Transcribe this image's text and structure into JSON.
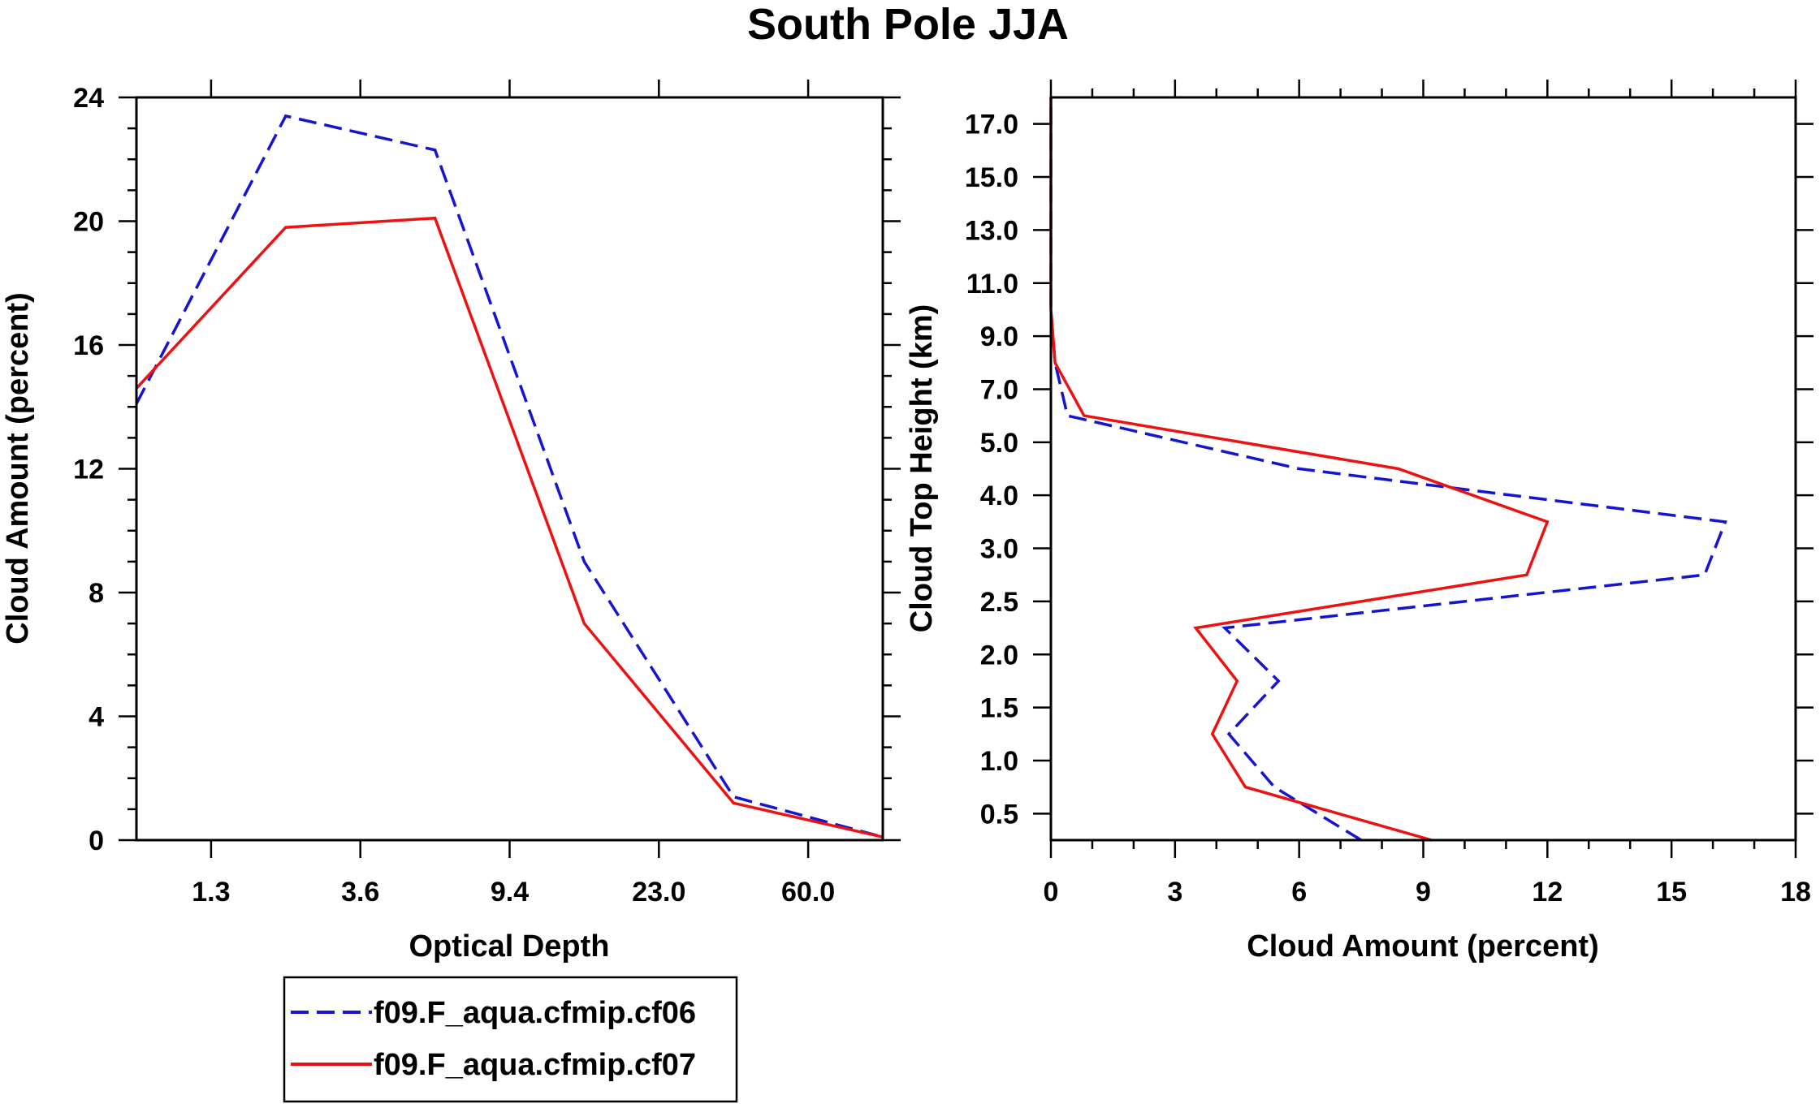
{
  "figure_title": "South Pole JJA",
  "legend": {
    "entries": [
      {
        "label": "f09.F_aqua.cfmip.cf06",
        "color": "#1414d2",
        "dash": "dashed"
      },
      {
        "label": "f09.F_aqua.cfmip.cf07",
        "color": "#ee1111",
        "dash": "solid"
      }
    ]
  },
  "chart_data": [
    {
      "type": "line",
      "title": "",
      "xlabel": "Optical Depth",
      "ylabel": "Cloud Amount (percent)",
      "xlim": [
        0,
        5
      ],
      "ylim": [
        0,
        24
      ],
      "x_tick_values": [
        0.5,
        1.5,
        2.5,
        3.5,
        4.5
      ],
      "x_tick_labels": [
        "1.3",
        "3.6",
        "9.4",
        "23.0",
        "60.0"
      ],
      "y_ticks": [
        0,
        4,
        8,
        12,
        16,
        20,
        24
      ],
      "y_tick_labels": [
        "0",
        "4",
        "8",
        "12",
        "16",
        "20",
        "24"
      ],
      "x": [
        0,
        1,
        2,
        3,
        4,
        5
      ],
      "series": [
        {
          "name": "f09.F_aqua.cfmip.cf06",
          "values": [
            14.1,
            23.4,
            22.3,
            9.0,
            1.4,
            0.1
          ]
        },
        {
          "name": "f09.F_aqua.cfmip.cf07",
          "values": [
            14.6,
            19.8,
            20.1,
            7.0,
            1.2,
            0.1
          ]
        }
      ]
    },
    {
      "type": "line",
      "title": "",
      "xlabel": "Cloud Amount (percent)",
      "ylabel": "Cloud Top Height (km)",
      "xlim": [
        0,
        18
      ],
      "ylim": [
        0,
        14
      ],
      "x_ticks": [
        0,
        3,
        6,
        9,
        12,
        15,
        18
      ],
      "x_tick_labels": [
        "0",
        "3",
        "6",
        "9",
        "12",
        "15",
        "18"
      ],
      "y_tick_values": [
        0.5,
        1.5,
        2.5,
        3.5,
        4.5,
        5.5,
        6.5,
        7.5,
        8.5,
        9.5,
        10.5,
        11.5,
        12.5,
        13.5
      ],
      "y_tick_labels": [
        "0.5",
        "1.0",
        "1.5",
        "2.0",
        "2.5",
        "3.0",
        "4.0",
        "5.0",
        "7.0",
        "9.0",
        "11.0",
        "13.0",
        "15.0",
        "17.0"
      ],
      "series": [
        {
          "name": "f09.F_aqua.cfmip.cf06",
          "x": [
            7.5,
            5.4,
            4.3,
            5.5,
            4.2,
            15.8,
            16.3,
            6.0,
            0.4,
            0.1,
            0.0,
            0.0,
            0.0,
            0.0,
            0.0
          ],
          "y": [
            0.0,
            1.0,
            2.0,
            3.0,
            4.0,
            5.0,
            6.0,
            7.0,
            8.0,
            9.0,
            10.0,
            11.0,
            12.0,
            13.0,
            14.0
          ]
        },
        {
          "name": "f09.F_aqua.cfmip.cf07",
          "x": [
            9.2,
            4.7,
            3.9,
            4.5,
            3.5,
            11.5,
            12.0,
            8.4,
            0.8,
            0.1,
            0.0,
            0.0,
            0.0,
            0.0,
            0.0
          ],
          "y": [
            0.0,
            1.0,
            2.0,
            3.0,
            4.0,
            5.0,
            6.0,
            7.0,
            8.0,
            9.0,
            10.0,
            11.0,
            12.0,
            13.0,
            14.0
          ]
        }
      ]
    }
  ]
}
